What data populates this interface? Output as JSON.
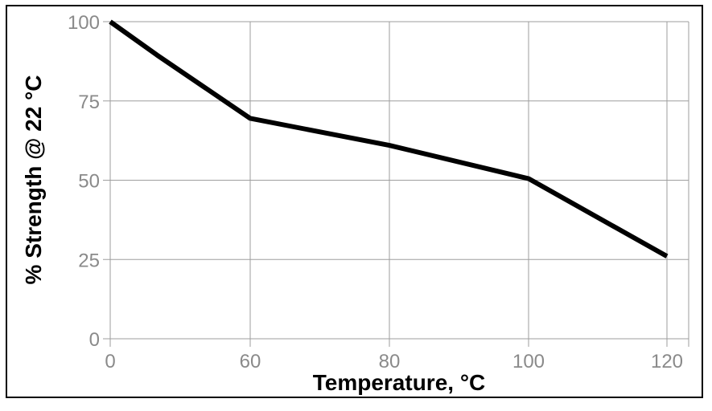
{
  "chart_data": {
    "type": "line",
    "title": "",
    "xlabel": "Temperature, °C",
    "ylabel": "% Strength @ 22 °C",
    "xlim": [
      0,
      120
    ],
    "ylim": [
      0,
      100
    ],
    "x_ticks": [
      0,
      60,
      80,
      100,
      120
    ],
    "y_ticks": [
      0,
      25,
      50,
      75,
      100
    ],
    "x_tick_labels": [
      "0",
      "60",
      "80",
      "100",
      "120"
    ],
    "y_tick_labels": [
      "0",
      "25",
      "50",
      "75",
      "100"
    ],
    "grid": true,
    "series": [
      {
        "x": [
          0,
          20,
          40,
          60,
          80,
          100,
          120
        ],
        "y": [
          100,
          89.5,
          79.5,
          69.5,
          61,
          50.5,
          26
        ],
        "color": "#000000"
      }
    ]
  },
  "colors": {
    "grid": "#9e9e9e",
    "tick_text": "#8a8a8a",
    "line": "#000000",
    "frame": "#000000"
  }
}
